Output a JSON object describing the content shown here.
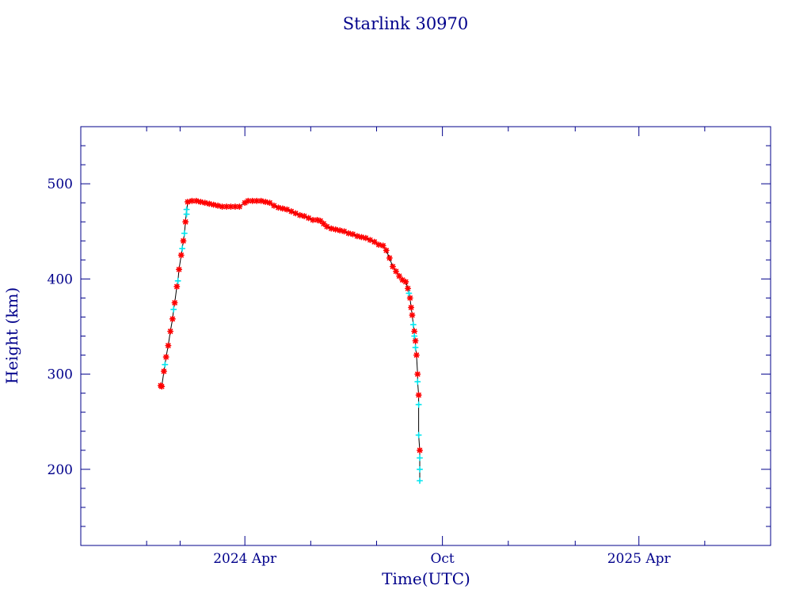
{
  "chart_data": {
    "type": "scatter",
    "title": "Starlink 30970",
    "xlabel": "Time(UTC)",
    "ylabel": "Height (km)",
    "x_unit": "date",
    "xlim": [
      "2023-11-01",
      "2025-08-01"
    ],
    "ylim": [
      120,
      560
    ],
    "x_ticks": [
      {
        "date": "2024-04-01",
        "label": "2024 Apr"
      },
      {
        "date": "2024-10-01",
        "label": "Oct"
      },
      {
        "date": "2025-04-01",
        "label": "2025 Apr"
      }
    ],
    "y_ticks": [
      200,
      300,
      400,
      500
    ],
    "colors": {
      "axis": "#00008b",
      "line": "#000000",
      "marker_primary": "#ff0000",
      "marker_secondary": "#00e5ee"
    },
    "series": [
      {
        "color": "#ff0000",
        "marker": "star",
        "points": [
          [
            "2024-01-14",
            288
          ],
          [
            "2024-01-15",
            287
          ],
          [
            "2024-01-17",
            303
          ],
          [
            "2024-01-19",
            318
          ],
          [
            "2024-01-21",
            330
          ],
          [
            "2024-01-23",
            345
          ],
          [
            "2024-01-25",
            358
          ],
          [
            "2024-01-27",
            375
          ],
          [
            "2024-01-29",
            392
          ],
          [
            "2024-01-31",
            410
          ],
          [
            "2024-02-02",
            425
          ],
          [
            "2024-02-04",
            440
          ],
          [
            "2024-02-06",
            460
          ],
          [
            "2024-02-08",
            481
          ],
          [
            "2024-02-12",
            482
          ],
          [
            "2024-02-16",
            482
          ],
          [
            "2024-02-20",
            481
          ],
          [
            "2024-02-24",
            480
          ],
          [
            "2024-02-28",
            479
          ],
          [
            "2024-03-03",
            478
          ],
          [
            "2024-03-07",
            477
          ],
          [
            "2024-03-11",
            476
          ],
          [
            "2024-03-15",
            476
          ],
          [
            "2024-03-19",
            476
          ],
          [
            "2024-03-23",
            476
          ],
          [
            "2024-03-27",
            476
          ],
          [
            "2024-04-01",
            480
          ],
          [
            "2024-04-04",
            482
          ],
          [
            "2024-04-08",
            482
          ],
          [
            "2024-04-12",
            482
          ],
          [
            "2024-04-16",
            482
          ],
          [
            "2024-04-20",
            481
          ],
          [
            "2024-04-24",
            480
          ],
          [
            "2024-04-28",
            477
          ],
          [
            "2024-05-02",
            475
          ],
          [
            "2024-05-06",
            474
          ],
          [
            "2024-05-10",
            473
          ],
          [
            "2024-05-14",
            471
          ],
          [
            "2024-05-18",
            469
          ],
          [
            "2024-05-22",
            467
          ],
          [
            "2024-05-26",
            466
          ],
          [
            "2024-05-30",
            464
          ],
          [
            "2024-06-03",
            462
          ],
          [
            "2024-06-07",
            462
          ],
          [
            "2024-06-10",
            461
          ],
          [
            "2024-06-13",
            458
          ],
          [
            "2024-06-16",
            455
          ],
          [
            "2024-06-20",
            453
          ],
          [
            "2024-06-24",
            452
          ],
          [
            "2024-06-28",
            451
          ],
          [
            "2024-07-02",
            450
          ],
          [
            "2024-07-06",
            448
          ],
          [
            "2024-07-10",
            447
          ],
          [
            "2024-07-14",
            445
          ],
          [
            "2024-07-18",
            444
          ],
          [
            "2024-07-22",
            443
          ],
          [
            "2024-07-26",
            441
          ],
          [
            "2024-07-30",
            439
          ],
          [
            "2024-08-03",
            436
          ],
          [
            "2024-08-07",
            435
          ],
          [
            "2024-08-10",
            430
          ],
          [
            "2024-08-13",
            422
          ],
          [
            "2024-08-16",
            413
          ],
          [
            "2024-08-19",
            408
          ],
          [
            "2024-08-22",
            403
          ],
          [
            "2024-08-25",
            399
          ],
          [
            "2024-08-28",
            397
          ],
          [
            "2024-08-30",
            390
          ],
          [
            "2024-09-01",
            380
          ],
          [
            "2024-09-02",
            370
          ],
          [
            "2024-09-03",
            362
          ],
          [
            "2024-09-05",
            345
          ],
          [
            "2024-09-06",
            335
          ],
          [
            "2024-09-07",
            320
          ],
          [
            "2024-09-08",
            300
          ],
          [
            "2024-09-09",
            278
          ],
          [
            "2024-09-10",
            220
          ]
        ]
      },
      {
        "color": "#00e5ee",
        "marker": "cross",
        "points": [
          [
            "2024-01-18",
            310
          ],
          [
            "2024-01-26",
            368
          ],
          [
            "2024-01-30",
            398
          ],
          [
            "2024-02-03",
            432
          ],
          [
            "2024-02-05",
            448
          ],
          [
            "2024-02-07",
            468
          ],
          [
            "2024-02-07",
            473
          ],
          [
            "2024-08-31",
            385
          ],
          [
            "2024-09-04",
            352
          ],
          [
            "2024-09-05",
            340
          ],
          [
            "2024-09-06",
            328
          ],
          [
            "2024-09-08",
            292
          ],
          [
            "2024-09-09",
            268
          ],
          [
            "2024-09-09",
            236
          ],
          [
            "2024-09-10",
            212
          ],
          [
            "2024-09-10",
            200
          ],
          [
            "2024-09-10",
            188
          ]
        ]
      }
    ]
  }
}
